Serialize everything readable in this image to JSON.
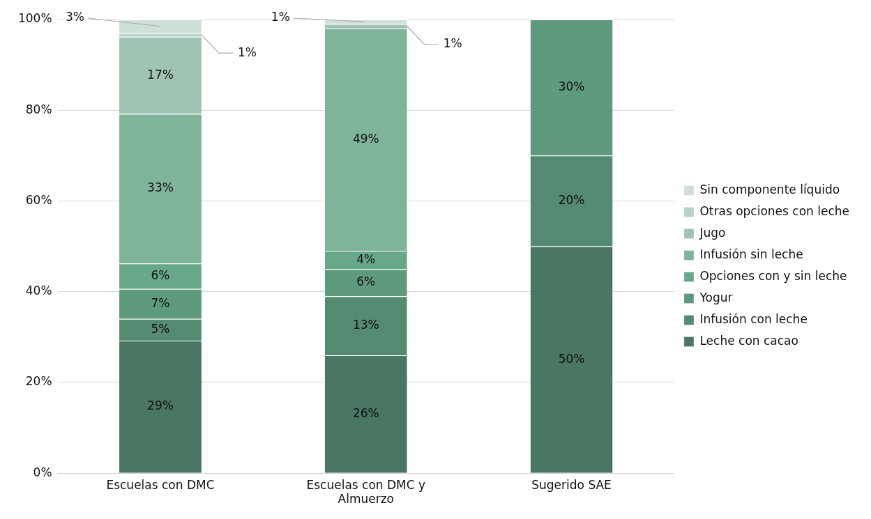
{
  "chart_data": {
    "type": "bar",
    "stacked": true,
    "categories": [
      "Escuelas con DMC",
      "Escuelas con DMC y Almuerzo",
      "Sugerido SAE"
    ],
    "ylim": [
      0,
      100
    ],
    "yticks": [
      {
        "value": 0,
        "label": "0%"
      },
      {
        "value": 20,
        "label": "20%"
      },
      {
        "value": 40,
        "label": "40%"
      },
      {
        "value": 60,
        "label": "60%"
      },
      {
        "value": 80,
        "label": "80%"
      },
      {
        "value": 100,
        "label": "100%"
      }
    ],
    "grid": "y",
    "legend": "right",
    "series": [
      {
        "name": "Leche con cacao",
        "color": "#497763",
        "values": [
          29.2,
          26,
          50
        ],
        "value_labels": [
          "29%",
          "26%",
          "50%"
        ]
      },
      {
        "name": "Infusión con leche",
        "color": "#548a71",
        "values": [
          4.8,
          13,
          20
        ],
        "value_labels": [
          "5%",
          "13%",
          "20%"
        ]
      },
      {
        "name": "Yogur",
        "color": "#5e9a7e",
        "values": [
          6.6,
          6,
          30
        ],
        "value_labels": [
          "7%",
          "6%",
          "30%"
        ]
      },
      {
        "name": "Opciones con y sin leche",
        "color": "#67a88a",
        "values": [
          5.6,
          4,
          null
        ],
        "value_labels": [
          "6%",
          "4%",
          null
        ]
      },
      {
        "name": "Infusión sin leche",
        "color": "#7fb49b",
        "values": [
          33,
          49,
          null
        ],
        "value_labels": [
          "33%",
          "49%",
          null
        ]
      },
      {
        "name": "Jugo",
        "color": "#a0c4b3",
        "values": [
          17,
          1,
          null
        ],
        "value_labels": [
          "17%",
          "1%",
          null
        ]
      },
      {
        "name": "Otras opciones con leche",
        "color": "#b8d4c6",
        "values": [
          0.8,
          null,
          null
        ],
        "value_labels": [
          "1%",
          null,
          null
        ]
      },
      {
        "name": "Sin componente líquido",
        "color": "#cfe0d7",
        "values": [
          3,
          1,
          null
        ],
        "value_labels": [
          "3%",
          "1%",
          null
        ]
      }
    ]
  }
}
